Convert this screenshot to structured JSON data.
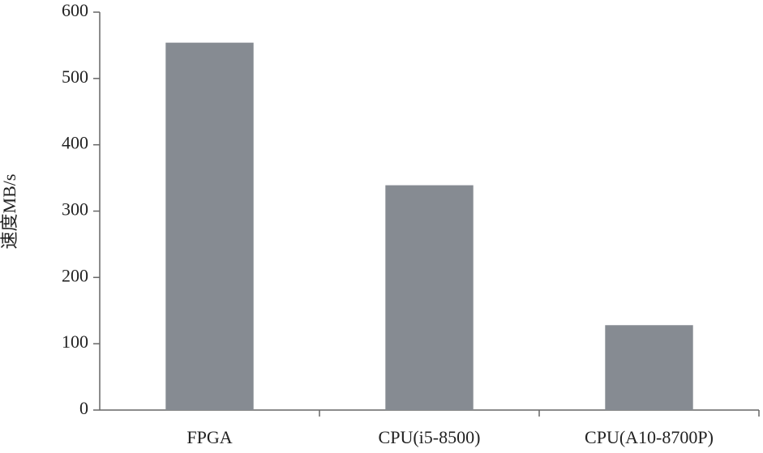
{
  "chart_data": {
    "type": "bar",
    "y_label": "速度MB/s",
    "categories": [
      "FPGA",
      "CPU(i5-8500)",
      "CPU(A10-8700P)"
    ],
    "values": [
      554,
      339,
      128
    ],
    "color": "#868b92",
    "ylim": [
      0,
      600
    ],
    "yticks": [
      0,
      100,
      200,
      300,
      400,
      500,
      600
    ]
  }
}
